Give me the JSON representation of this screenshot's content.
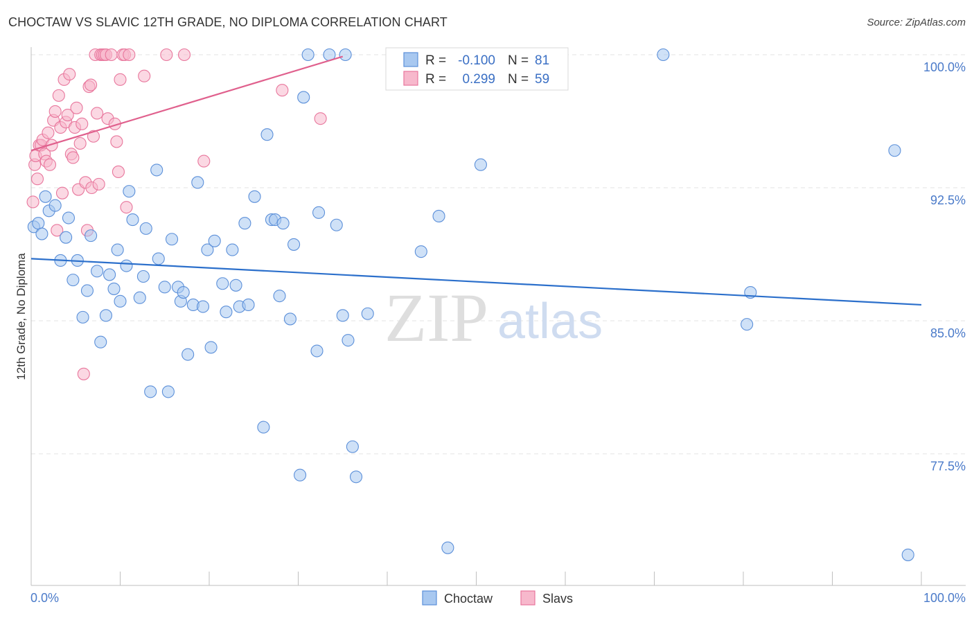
{
  "chart_data": {
    "type": "scatter",
    "title": "CHOCTAW VS SLAVIC 12TH GRADE, NO DIPLOMA CORRELATION CHART",
    "source": "Source: ZipAtlas.com",
    "xlabel": "",
    "ylabel": "12th Grade, No Diploma",
    "xlim": [
      0,
      100
    ],
    "ylim": [
      70.5,
      101.5
    ],
    "x_tick_labels": [
      "0.0%",
      "100.0%"
    ],
    "y_ticks": [
      {
        "value": 100.0,
        "label": "100.0%"
      },
      {
        "value": 92.5,
        "label": "92.5%"
      },
      {
        "value": 85.0,
        "label": "85.0%"
      },
      {
        "value": 77.5,
        "label": "77.5%"
      }
    ],
    "watermark": {
      "part1": "ZIP",
      "part2": "atlas"
    },
    "colors": {
      "choctaw_fill": "#a8c8f0",
      "choctaw_stroke": "#5b8fd9",
      "choctaw_line": "#2b6fcb",
      "slavs_fill": "#f7b8cc",
      "slavs_stroke": "#e8769c",
      "slavs_line": "#e0608d",
      "axis_text": "#4a7ac9",
      "grid": "#e3e3e3"
    },
    "legend": {
      "r_label": "R =",
      "n_label": "N =",
      "rows": [
        {
          "series": "Choctaw",
          "r": "-0.100",
          "n": "81"
        },
        {
          "series": "Slavs",
          "r": "0.299",
          "n": "59"
        }
      ]
    },
    "series": [
      {
        "name": "Choctaw",
        "trend": {
          "x": [
            0,
            100
          ],
          "y": [
            88.5,
            85.9
          ]
        },
        "points": [
          [
            0.3,
            90.3
          ],
          [
            0.8,
            90.5
          ],
          [
            1.2,
            89.9
          ],
          [
            1.6,
            92.0
          ],
          [
            2.0,
            91.2
          ],
          [
            2.7,
            91.5
          ],
          [
            3.3,
            88.4
          ],
          [
            3.9,
            89.7
          ],
          [
            4.2,
            90.8
          ],
          [
            4.7,
            87.3
          ],
          [
            5.2,
            88.4
          ],
          [
            5.8,
            85.2
          ],
          [
            6.3,
            86.7
          ],
          [
            6.7,
            89.8
          ],
          [
            7.4,
            87.8
          ],
          [
            7.8,
            83.8
          ],
          [
            8.4,
            85.3
          ],
          [
            8.8,
            87.6
          ],
          [
            9.3,
            86.8
          ],
          [
            9.7,
            89.0
          ],
          [
            10.0,
            86.1
          ],
          [
            10.7,
            88.1
          ],
          [
            11.0,
            92.3
          ],
          [
            11.4,
            90.7
          ],
          [
            12.2,
            86.3
          ],
          [
            12.6,
            87.5
          ],
          [
            12.9,
            90.2
          ],
          [
            13.4,
            81.0
          ],
          [
            14.1,
            93.5
          ],
          [
            14.3,
            88.5
          ],
          [
            15.0,
            86.9
          ],
          [
            15.4,
            81.0
          ],
          [
            15.8,
            89.6
          ],
          [
            16.5,
            86.9
          ],
          [
            16.8,
            86.1
          ],
          [
            17.1,
            86.6
          ],
          [
            17.6,
            83.1
          ],
          [
            18.2,
            85.9
          ],
          [
            18.7,
            92.8
          ],
          [
            19.3,
            85.8
          ],
          [
            19.8,
            89.0
          ],
          [
            20.2,
            83.5
          ],
          [
            20.6,
            89.5
          ],
          [
            21.5,
            87.1
          ],
          [
            21.9,
            85.5
          ],
          [
            22.6,
            89.0
          ],
          [
            23.0,
            87.0
          ],
          [
            23.4,
            85.8
          ],
          [
            24.0,
            90.5
          ],
          [
            24.4,
            85.9
          ],
          [
            25.1,
            92.0
          ],
          [
            26.1,
            79.0
          ],
          [
            26.5,
            95.5
          ],
          [
            27.0,
            90.7
          ],
          [
            27.4,
            90.7
          ],
          [
            27.9,
            86.4
          ],
          [
            28.3,
            90.5
          ],
          [
            29.1,
            85.1
          ],
          [
            29.5,
            89.3
          ],
          [
            30.2,
            76.3
          ],
          [
            30.6,
            97.6
          ],
          [
            31.1,
            100.0
          ],
          [
            32.1,
            83.3
          ],
          [
            32.3,
            91.1
          ],
          [
            33.5,
            100.0
          ],
          [
            34.3,
            90.4
          ],
          [
            35.0,
            85.3
          ],
          [
            35.6,
            83.9
          ],
          [
            35.3,
            100.0
          ],
          [
            36.1,
            77.9
          ],
          [
            36.5,
            76.2
          ],
          [
            37.8,
            85.4
          ],
          [
            43.8,
            88.9
          ],
          [
            45.8,
            90.9
          ],
          [
            46.8,
            72.2
          ],
          [
            50.5,
            93.8
          ],
          [
            71.0,
            100.0
          ],
          [
            80.4,
            84.8
          ],
          [
            80.8,
            86.6
          ],
          [
            97.0,
            94.6
          ],
          [
            98.5,
            71.8
          ]
        ]
      },
      {
        "name": "Slavs",
        "trend": {
          "x": [
            0,
            35
          ],
          "y": [
            94.6,
            99.9
          ]
        },
        "points": [
          [
            0.2,
            91.7
          ],
          [
            0.4,
            93.8
          ],
          [
            0.5,
            94.3
          ],
          [
            0.7,
            93.0
          ],
          [
            0.9,
            94.9
          ],
          [
            1.1,
            94.9
          ],
          [
            1.3,
            95.2
          ],
          [
            1.5,
            94.4
          ],
          [
            1.7,
            94.0
          ],
          [
            1.9,
            95.6
          ],
          [
            2.1,
            93.8
          ],
          [
            2.3,
            94.9
          ],
          [
            2.5,
            96.3
          ],
          [
            2.7,
            96.8
          ],
          [
            2.9,
            90.1
          ],
          [
            3.1,
            97.7
          ],
          [
            3.3,
            95.9
          ],
          [
            3.5,
            92.2
          ],
          [
            3.7,
            98.6
          ],
          [
            3.9,
            96.2
          ],
          [
            4.1,
            96.6
          ],
          [
            4.3,
            98.9
          ],
          [
            4.5,
            94.4
          ],
          [
            4.7,
            94.2
          ],
          [
            4.9,
            95.9
          ],
          [
            5.1,
            97.0
          ],
          [
            5.3,
            92.4
          ],
          [
            5.5,
            95.0
          ],
          [
            5.7,
            96.1
          ],
          [
            5.9,
            82.0
          ],
          [
            6.1,
            92.8
          ],
          [
            6.3,
            90.1
          ],
          [
            6.5,
            98.2
          ],
          [
            6.7,
            98.3
          ],
          [
            6.8,
            92.5
          ],
          [
            7.0,
            95.4
          ],
          [
            7.2,
            100.0
          ],
          [
            7.4,
            96.7
          ],
          [
            7.6,
            92.7
          ],
          [
            7.8,
            100.0
          ],
          [
            8.0,
            100.0
          ],
          [
            8.2,
            100.0
          ],
          [
            8.4,
            100.0
          ],
          [
            8.6,
            96.4
          ],
          [
            9.0,
            100.0
          ],
          [
            9.4,
            96.1
          ],
          [
            9.6,
            95.1
          ],
          [
            9.8,
            93.4
          ],
          [
            10.0,
            98.6
          ],
          [
            10.3,
            100.0
          ],
          [
            10.5,
            100.0
          ],
          [
            10.7,
            91.4
          ],
          [
            11.0,
            100.0
          ],
          [
            12.7,
            98.8
          ],
          [
            15.2,
            100.0
          ],
          [
            17.2,
            100.0
          ],
          [
            19.4,
            94.0
          ],
          [
            28.2,
            98.0
          ],
          [
            32.5,
            96.4
          ]
        ]
      }
    ]
  }
}
